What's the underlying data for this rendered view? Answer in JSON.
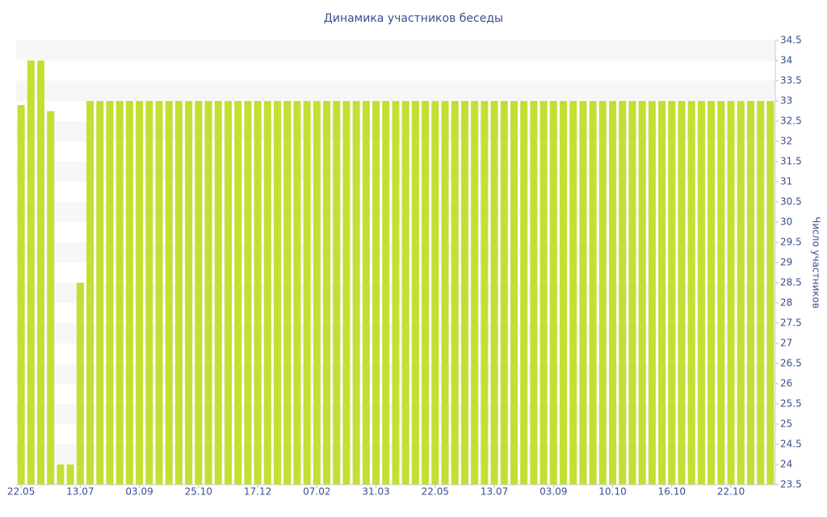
{
  "chart_data": {
    "type": "bar",
    "title": "Динамика участников беседы",
    "y_label": "Число участников",
    "categories": [
      "22.05",
      null,
      null,
      null,
      null,
      null,
      "13.07",
      null,
      null,
      null,
      null,
      null,
      "03.09",
      null,
      null,
      null,
      null,
      null,
      "25.10",
      null,
      null,
      null,
      null,
      null,
      "17.12",
      null,
      null,
      null,
      null,
      null,
      "07.02",
      null,
      null,
      null,
      null,
      null,
      "31.03",
      null,
      null,
      null,
      null,
      null,
      "22.05",
      null,
      null,
      null,
      null,
      null,
      "13.07",
      null,
      null,
      null,
      null,
      null,
      "03.09",
      null,
      null,
      null,
      null,
      null,
      "10.10",
      null,
      null,
      null,
      null,
      null,
      "16.10",
      null,
      null,
      null,
      null,
      null,
      "22.10",
      null,
      null,
      null,
      null
    ],
    "values": [
      32.9,
      34,
      34,
      32.75,
      24,
      24,
      28.5,
      33,
      33,
      33,
      33,
      33,
      33,
      33,
      33,
      33,
      33,
      33,
      33,
      33,
      33,
      33,
      33,
      33,
      33,
      33,
      33,
      33,
      33,
      33,
      33,
      33,
      33,
      33,
      33,
      33,
      33,
      33,
      33,
      33,
      33,
      33,
      33,
      33,
      33,
      33,
      33,
      33,
      33,
      33,
      33,
      33,
      33,
      33,
      33,
      33,
      33,
      33,
      33,
      33,
      33,
      33,
      33,
      33,
      33,
      33,
      33,
      33,
      33,
      33,
      33,
      33,
      33,
      33,
      33,
      33,
      33
    ],
    "color": "#c2e034",
    "ylim": [
      23.5,
      34.5
    ],
    "yticks": [
      23.5,
      24,
      24.5,
      25,
      25.5,
      26,
      26.5,
      27,
      27.5,
      28,
      28.5,
      29,
      29.5,
      30,
      30.5,
      31,
      31.5,
      32,
      32.5,
      33,
      33.5,
      34,
      34.5
    ],
    "y_axis_side": "right",
    "grid": true
  }
}
